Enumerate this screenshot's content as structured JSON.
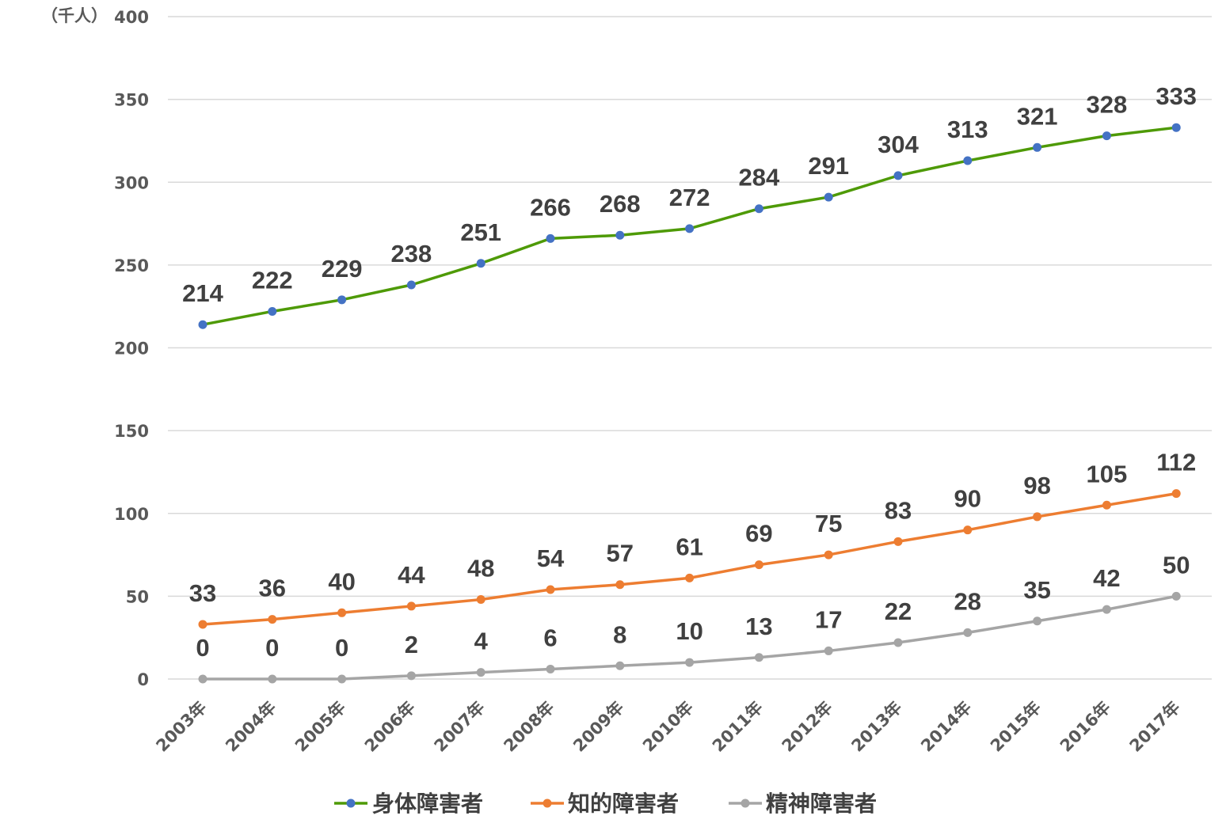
{
  "chart_data": {
    "type": "line",
    "title": "",
    "xlabel": "",
    "ylabel": "",
    "y_unit": "（千人）",
    "ylim": [
      0,
      400
    ],
    "y_ticks": [
      "0",
      "50",
      "100",
      "150",
      "200",
      "250",
      "300",
      "350",
      "400"
    ],
    "grid": true,
    "legend_position": "bottom",
    "categories": [
      "2003年",
      "2004年",
      "2005年",
      "2006年",
      "2007年",
      "2008年",
      "2009年",
      "2010年",
      "2011年",
      "2012年",
      "2013年",
      "2014年",
      "2015年",
      "2016年",
      "2017年"
    ],
    "series": [
      {
        "name": "身体障害者",
        "line_color": "#4e9a06",
        "marker_color": "#4472c4",
        "values": [
          214,
          222,
          229,
          238,
          251,
          266,
          268,
          272,
          284,
          291,
          304,
          313,
          321,
          328,
          333
        ]
      },
      {
        "name": "知的障害者",
        "line_color": "#ed7d31",
        "marker_color": "#ed7d31",
        "values": [
          33,
          36,
          40,
          44,
          48,
          54,
          57,
          61,
          69,
          75,
          83,
          90,
          98,
          105,
          112
        ]
      },
      {
        "name": "精神障害者",
        "line_color": "#a5a5a5",
        "marker_color": "#a5a5a5",
        "values": [
          0,
          0,
          0,
          2,
          4,
          6,
          8,
          10,
          13,
          17,
          22,
          28,
          35,
          42,
          50
        ]
      }
    ]
  }
}
